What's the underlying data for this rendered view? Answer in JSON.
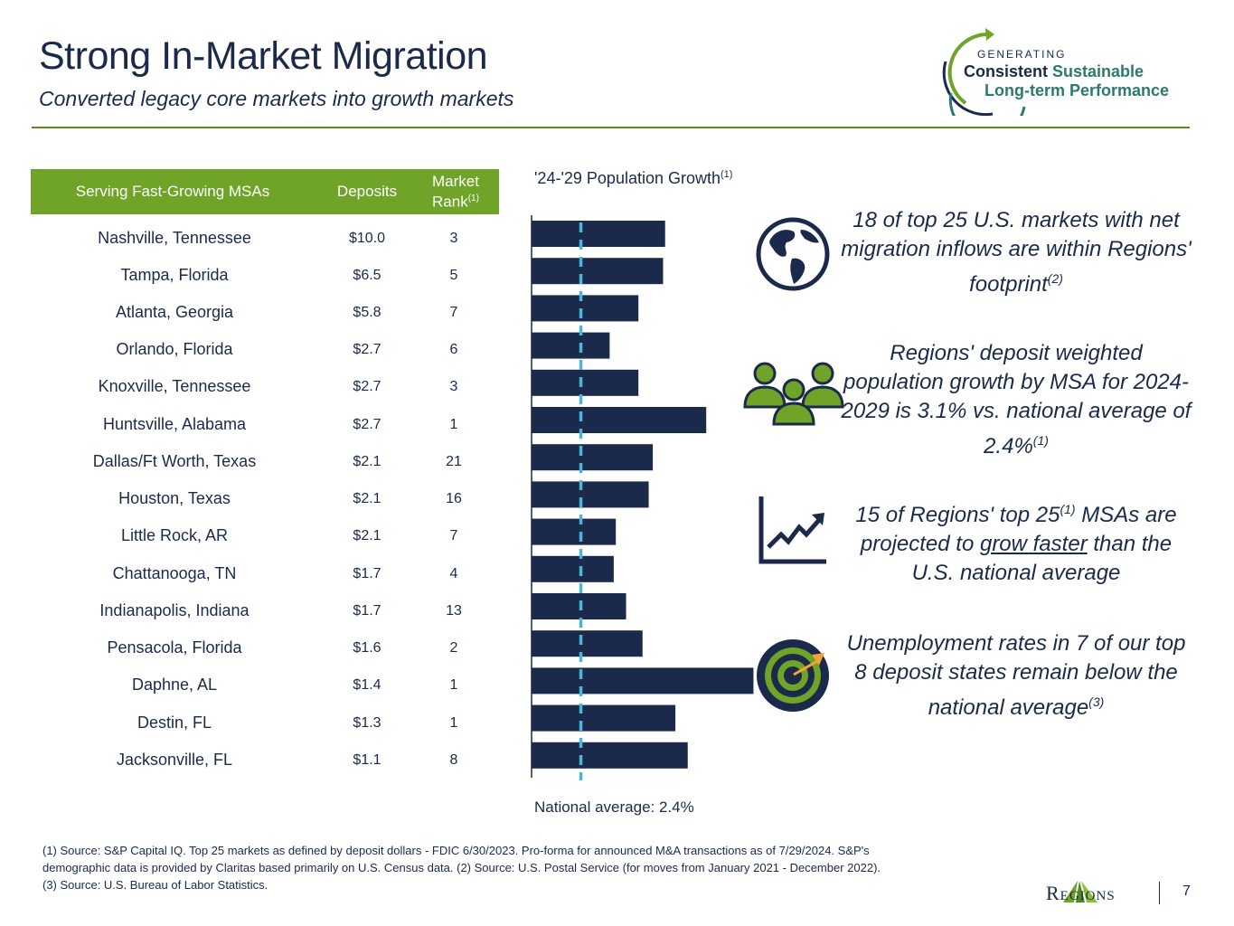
{
  "header": {
    "title": "Strong In-Market Migration",
    "subtitle": "Converted legacy core markets into growth markets"
  },
  "logo": {
    "generating": "GENERATING",
    "consistent": "Consistent",
    "sustainable": "Sustainable",
    "long_term": "Long-term Performance"
  },
  "table": {
    "headers": {
      "msa": "Serving Fast-Growing MSAs",
      "deposits": "Deposits",
      "rank_line1": "Market",
      "rank_line2": "Rank",
      "rank_note": "(1)"
    },
    "rows": [
      {
        "msa": "Nashville, Tennessee",
        "deposits": "$10.0",
        "rank": "3"
      },
      {
        "msa": "Tampa, Florida",
        "deposits": "$6.5",
        "rank": "5"
      },
      {
        "msa": "Atlanta, Georgia",
        "deposits": "$5.8",
        "rank": "7"
      },
      {
        "msa": "Orlando, Florida",
        "deposits": "$2.7",
        "rank": "6"
      },
      {
        "msa": "Knoxville, Tennessee",
        "deposits": "$2.7",
        "rank": "3"
      },
      {
        "msa": "Huntsville, Alabama",
        "deposits": "$2.7",
        "rank": "1"
      },
      {
        "msa": "Dallas/Ft Worth, Texas",
        "deposits": "$2.1",
        "rank": "21"
      },
      {
        "msa": "Houston, Texas",
        "deposits": "$2.1",
        "rank": "16"
      },
      {
        "msa": "Little Rock, AR",
        "deposits": "$2.1",
        "rank": "7"
      },
      {
        "msa": "Chattanooga, TN",
        "deposits": "$1.7",
        "rank": "4"
      },
      {
        "msa": "Indianapolis, Indiana",
        "deposits": "$1.7",
        "rank": "13"
      },
      {
        "msa": "Pensacola, Florida",
        "deposits": "$1.6",
        "rank": "2"
      },
      {
        "msa": "Daphne, AL",
        "deposits": "$1.4",
        "rank": "1"
      },
      {
        "msa": "Destin, FL",
        "deposits": "$1.3",
        "rank": "1"
      },
      {
        "msa": "Jacksonville, FL",
        "deposits": "$1.1",
        "rank": "8"
      }
    ]
  },
  "chart_title": "'24-'29 Population Growth",
  "chart_title_note": "(1)",
  "national_avg_label": "National average: 2.4%",
  "chart_data": {
    "type": "bar",
    "orientation": "horizontal",
    "title": "'24-'29 Population Growth",
    "unit": "%",
    "categories": [
      "Nashville, Tennessee",
      "Tampa, Florida",
      "Atlanta, Georgia",
      "Orlando, Florida",
      "Knoxville, Tennessee",
      "Huntsville, Alabama",
      "Dallas/Ft Worth, Texas",
      "Houston, Texas",
      "Little Rock, AR",
      "Chattanooga, TN",
      "Indianapolis, Indiana",
      "Pensacola, Florida",
      "Daphne, AL",
      "Destin, FL",
      "Jacksonville, FL"
    ],
    "values": [
      6.5,
      6.4,
      5.2,
      3.8,
      5.2,
      8.5,
      5.9,
      5.7,
      4.1,
      4.0,
      4.6,
      5.4,
      10.8,
      7.0,
      7.6
    ],
    "reference_line": {
      "label": "National average",
      "value": 2.4,
      "style": "dashed"
    },
    "xlim": [
      0,
      11
    ],
    "color": "#1b2a4a",
    "reference_color": "#4fb3d9"
  },
  "callouts": [
    {
      "pre": "18 of top 25 U.S. markets with net migration inflows are within Regions' footprint",
      "note": "(2)"
    },
    {
      "pre": "Regions' deposit weighted population growth by MSA for 2024-2029 is 3.1% vs. national average of 2.4%",
      "note": "(1)"
    },
    {
      "pre": "15 of Regions' top 25",
      "note": "(1)",
      "mid": " MSAs are projected to ",
      "underlined": "grow faster",
      "post": " than the U.S. national average"
    },
    {
      "pre": "Unemployment rates in 7 of our top 8 deposit states remain below the national average",
      "note": "(3)"
    }
  ],
  "icons": [
    "globe-icon",
    "people-icon",
    "trend-up-chart-icon",
    "target-icon"
  ],
  "footnotes": {
    "line1": "(1) Source: S&P Capital IQ. Top 25 markets as defined by deposit dollars - FDIC 6/30/2023. Pro-forma for announced M&A transactions as of 7/29/2024. S&P's",
    "line2": "demographic data is provided by Claritas based primarily on U.S. Census data. (2) Source:  U.S. Postal Service (for moves from January 2021 - December 2022).",
    "line3": "(3) Source: U.S. Bureau of Labor Statistics."
  },
  "footer": {
    "brand": "Regions",
    "page": "7"
  },
  "colors": {
    "navy": "#1b2a4a",
    "green": "#6fa428",
    "teal": "#2c7a6b",
    "dash": "#4fb3d9"
  }
}
